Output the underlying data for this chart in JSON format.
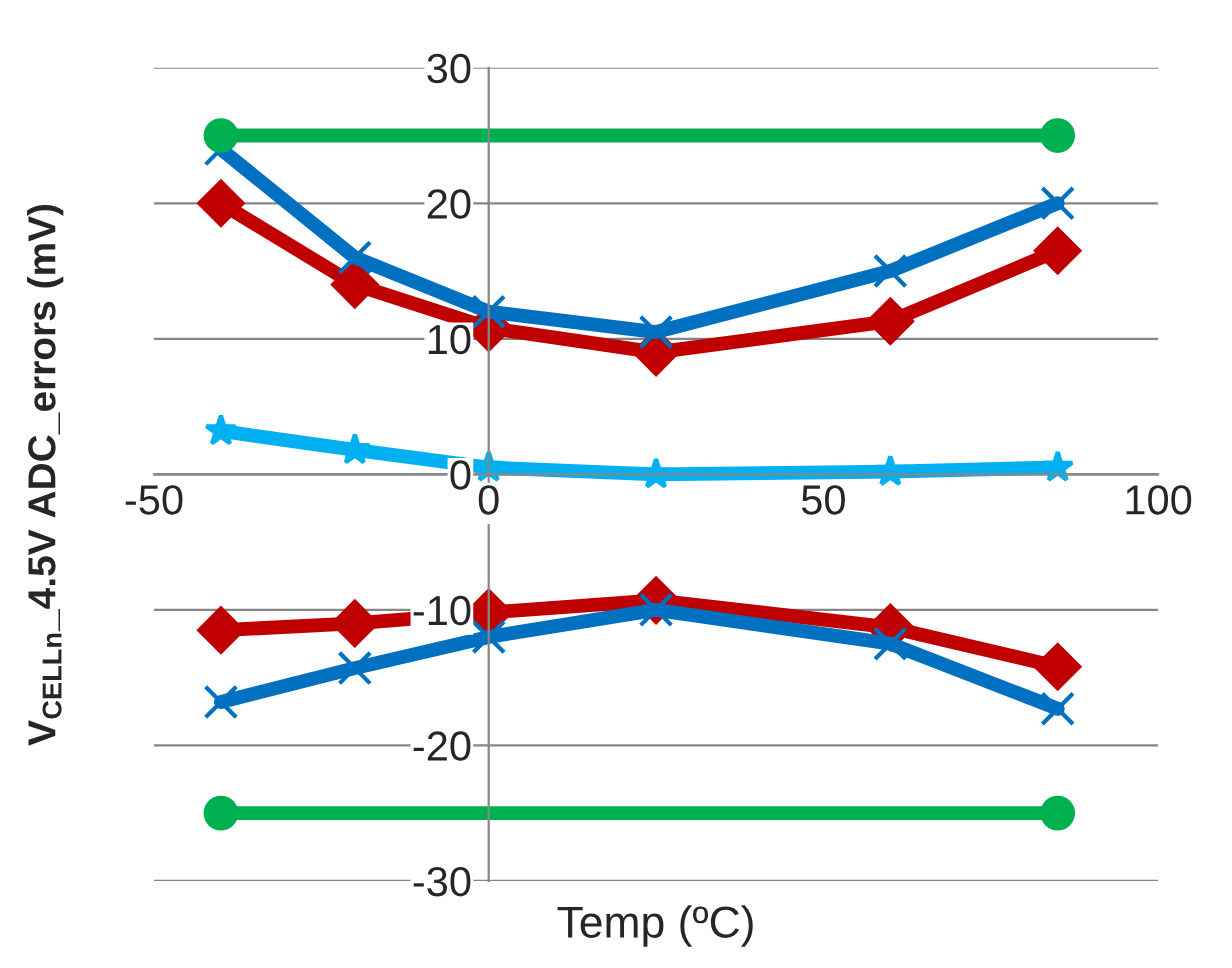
{
  "chart_data": {
    "type": "line",
    "xlabel": "Temp (ºC)",
    "ylabel": "V$_{CELLn}$_4.5V ADC_errors (mV)",
    "xlim": [
      -50,
      100
    ],
    "xticks": [
      -50,
      0,
      50,
      100
    ],
    "ylim": [
      -30,
      30
    ],
    "yticks": [
      -30,
      -20,
      -10,
      0,
      10,
      20,
      30
    ],
    "grid": "y",
    "legend": false,
    "line_style": "solid",
    "series": [
      {
        "x": [
          -40,
          85
        ],
        "values": [
          25,
          25
        ],
        "color": "#00b050",
        "marker": "circle"
      },
      {
        "x": [
          -40,
          85
        ],
        "values": [
          -25,
          -25
        ],
        "color": "#00b050",
        "marker": "circle"
      },
      {
        "x": [
          -40,
          -20,
          0,
          25,
          60,
          85
        ],
        "values": [
          24,
          16,
          12,
          10.5,
          15,
          20
        ],
        "color": "#0070c0",
        "marker": "cross"
      },
      {
        "x": [
          -40,
          -20,
          0,
          25,
          60,
          85
        ],
        "values": [
          20,
          14,
          10.8,
          9,
          11.3,
          16.5
        ],
        "color": "#c00000",
        "marker": "diamond"
      },
      {
        "x": [
          -40,
          -20,
          0,
          25,
          60,
          85
        ],
        "values": [
          3.2,
          1.8,
          0.5,
          0,
          0.2,
          0.5
        ],
        "color": "#00b0f0",
        "marker": "star"
      },
      {
        "x": [
          -40,
          -20,
          0,
          25,
          60,
          85
        ],
        "values": [
          -16.8,
          -14.3,
          -12,
          -10,
          -12.5,
          -17.3
        ],
        "color": "#0070c0",
        "marker": "cross"
      },
      {
        "x": [
          -40,
          -20,
          0,
          25,
          60,
          85
        ],
        "values": [
          -11.5,
          -11,
          -10.2,
          -9.3,
          -11.3,
          -14.2
        ],
        "color": "#c00000",
        "marker": "diamond"
      }
    ]
  }
}
